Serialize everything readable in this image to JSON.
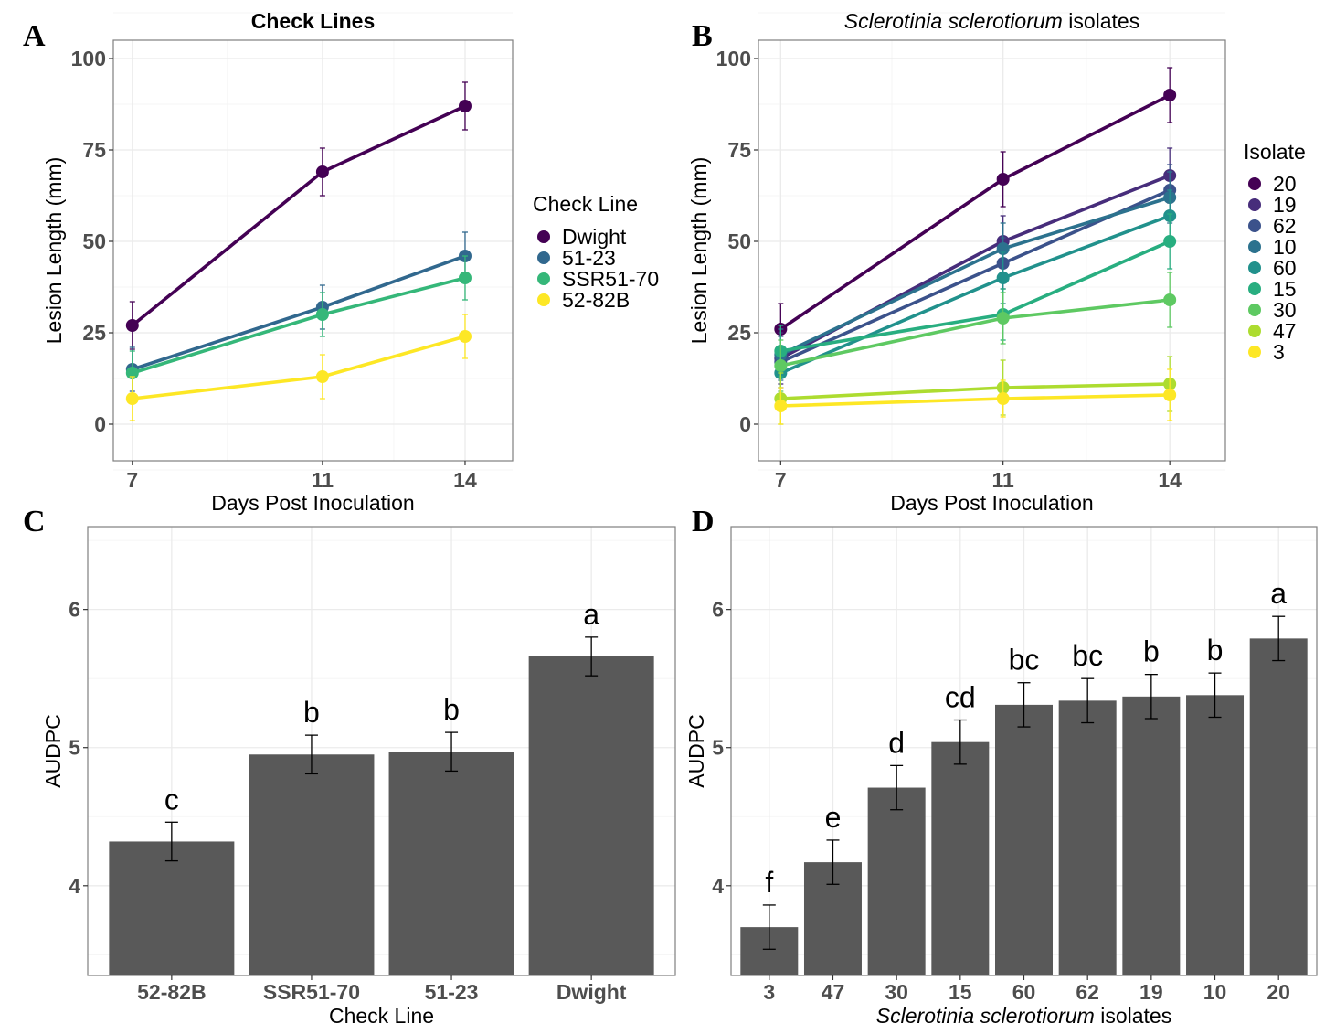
{
  "panel_letters": [
    "A",
    "B",
    "C",
    "D"
  ],
  "chart_data": [
    {
      "panel": "A",
      "type": "line",
      "title": "Check Lines",
      "xlabel": "Days Post Inoculation",
      "ylabel": "Lesion Length (mm)",
      "x": [
        7,
        11,
        14
      ],
      "x_ticks": [
        "7",
        "11",
        "14"
      ],
      "y_ticks": [
        "0",
        "25",
        "50",
        "75",
        "100"
      ],
      "xlim": [
        6.6,
        15.0
      ],
      "ylim": [
        -10,
        105
      ],
      "legend_title": "Check Line",
      "legend_position": "right",
      "series": [
        {
          "name": "Dwight",
          "color": "#440154",
          "values": [
            27,
            69,
            87
          ],
          "err": [
            6.5,
            6.5,
            6.5
          ]
        },
        {
          "name": "51-23",
          "color": "#31688e",
          "values": [
            15,
            32,
            46
          ],
          "err": [
            6,
            6,
            6.5
          ]
        },
        {
          "name": "SSR51-70",
          "color": "#35b779",
          "values": [
            14,
            30,
            40
          ],
          "err": [
            6,
            6,
            6
          ]
        },
        {
          "name": "52-82B",
          "color": "#fde725",
          "values": [
            7,
            13,
            24
          ],
          "err": [
            6,
            6,
            6
          ]
        }
      ]
    },
    {
      "panel": "B",
      "type": "line",
      "title_italic": "Sclerotinia sclerotiorum",
      "title_rest": " isolates",
      "xlabel": "Days Post Inoculation",
      "ylabel": "Lesion Length (mm)",
      "x": [
        7,
        11,
        14
      ],
      "x_ticks": [
        "7",
        "11",
        "14"
      ],
      "y_ticks": [
        "0",
        "25",
        "50",
        "75",
        "100"
      ],
      "xlim": [
        6.6,
        15.0
      ],
      "ylim": [
        -10,
        105
      ],
      "legend_title": "Isolate",
      "legend_position": "right",
      "series": [
        {
          "name": "20",
          "color": "#440154",
          "values": [
            26,
            67,
            90
          ],
          "err": [
            7,
            7.5,
            7.5
          ]
        },
        {
          "name": "19",
          "color": "#472d7b",
          "values": [
            18,
            50,
            68
          ],
          "err": [
            7,
            7,
            7.5
          ]
        },
        {
          "name": "62",
          "color": "#3b528b",
          "values": [
            17,
            44,
            64
          ],
          "err": [
            7,
            7,
            7
          ]
        },
        {
          "name": "10",
          "color": "#2c728e",
          "values": [
            19,
            48,
            62
          ],
          "err": [
            7,
            7,
            7
          ]
        },
        {
          "name": "60",
          "color": "#21918c",
          "values": [
            14,
            40,
            57
          ],
          "err": [
            7,
            7,
            7
          ]
        },
        {
          "name": "15",
          "color": "#28ae80",
          "values": [
            20,
            30,
            50
          ],
          "err": [
            7,
            7,
            7.5
          ]
        },
        {
          "name": "30",
          "color": "#5ec962",
          "values": [
            16,
            29,
            34
          ],
          "err": [
            7,
            7,
            7.5
          ]
        },
        {
          "name": "47",
          "color": "#addc30",
          "values": [
            7,
            10,
            11
          ],
          "err": [
            7,
            7.5,
            7.5
          ]
        },
        {
          "name": "3",
          "color": "#fde725",
          "values": [
            5,
            7,
            8
          ],
          "err": [
            5,
            5,
            7
          ]
        }
      ]
    },
    {
      "panel": "C",
      "type": "bar",
      "xlabel": "Check Line",
      "ylabel": "AUDPC",
      "categories": [
        "52-82B",
        "SSR51-70",
        "51-23",
        "Dwight"
      ],
      "values": [
        4.32,
        4.95,
        4.97,
        5.66
      ],
      "err": [
        0.14,
        0.14,
        0.14,
        0.14
      ],
      "labels": [
        "c",
        "b",
        "b",
        "a"
      ],
      "y_ticks": [
        "4",
        "5",
        "6"
      ],
      "ylim": [
        3.35,
        6.6
      ],
      "bar_color": "#595959"
    },
    {
      "panel": "D",
      "type": "bar",
      "xlabel_italic": "Sclerotinia sclerotiorum",
      "xlabel_rest": " isolates",
      "ylabel": "AUDPC",
      "categories": [
        "3",
        "47",
        "30",
        "15",
        "60",
        "62",
        "19",
        "10",
        "20"
      ],
      "values": [
        3.7,
        4.17,
        4.71,
        5.04,
        5.31,
        5.34,
        5.37,
        5.38,
        5.79
      ],
      "err": [
        0.16,
        0.16,
        0.16,
        0.16,
        0.16,
        0.16,
        0.16,
        0.16,
        0.16
      ],
      "labels": [
        "f",
        "e",
        "d",
        "cd",
        "bc",
        "bc",
        "b",
        "b",
        "a"
      ],
      "y_ticks": [
        "4",
        "5",
        "6"
      ],
      "ylim": [
        3.35,
        6.6
      ],
      "bar_color": "#595959"
    }
  ]
}
